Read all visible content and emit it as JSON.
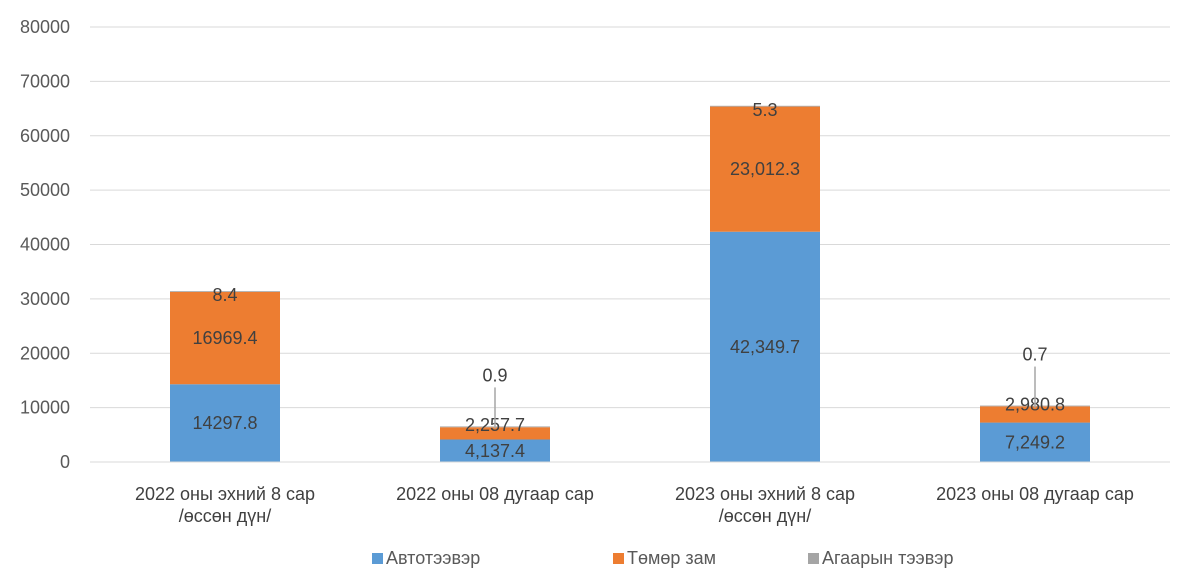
{
  "chart_data": {
    "type": "bar",
    "stacked": true,
    "categories": [
      [
        "2022 оны эхний 8 сар",
        "/өссөн дүн/"
      ],
      [
        "2022 оны 08 дугаар сар"
      ],
      [
        "2023 оны эхний 8 сар",
        "/өссөн дүн/"
      ],
      [
        "2023 оны 08 дугаар сар"
      ]
    ],
    "series": [
      {
        "name": "Автотээвэр",
        "color": "#5B9BD5",
        "values": [
          14297.8,
          4137.4,
          42349.7,
          7249.2
        ],
        "labels": [
          "14297.8",
          "4,137.4",
          "42,349.7",
          "7,249.2"
        ]
      },
      {
        "name": "Төмөр зам",
        "color": "#ED7D31",
        "values": [
          16969.4,
          2257.7,
          23012.3,
          2980.8
        ],
        "labels": [
          "16969.4",
          "2,257.7",
          "23,012.3",
          "2,980.8"
        ]
      },
      {
        "name": "Агаарын тээвэр",
        "color": "#A5A5A5",
        "values": [
          8.4,
          0.9,
          5.3,
          0.7
        ],
        "labels": [
          "8.4",
          "0.9",
          "5.3",
          "0.7"
        ]
      }
    ],
    "ylim": [
      0,
      80000
    ],
    "yticks": [
      "0",
      "10000",
      "20000",
      "30000",
      "40000",
      "50000",
      "60000",
      "70000",
      "80000"
    ],
    "grid": true,
    "legend_position": "bottom"
  }
}
